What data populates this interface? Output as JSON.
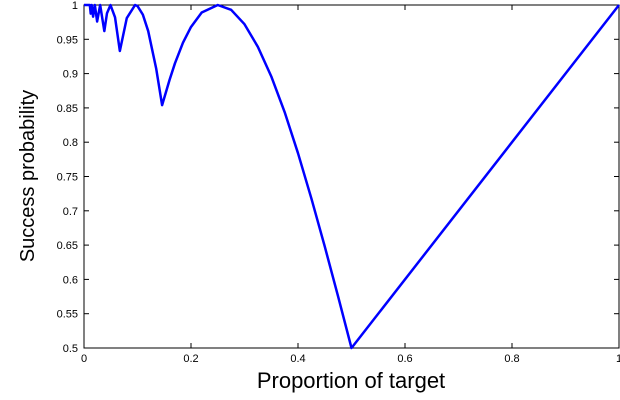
{
  "chart_data": {
    "type": "line",
    "xlabel": "Proportion of target",
    "ylabel": "Success probability",
    "xlim": [
      0,
      1
    ],
    "ylim": [
      0.5,
      1
    ],
    "xticks": [
      0,
      0.2,
      0.4,
      0.6,
      0.8,
      1
    ],
    "yticks": [
      0.5,
      0.55,
      0.6,
      0.65,
      0.7,
      0.75,
      0.8,
      0.85,
      0.9,
      0.95,
      1
    ],
    "color": "#0000ff",
    "x": [
      0,
      0.0109,
      0.01255,
      0.0145,
      0.017,
      0.0203,
      0.0245,
      0.0302,
      0.038,
      0.043,
      0.0495,
      0.058,
      0.067,
      0.08,
      0.0955,
      0.1,
      0.11,
      0.12,
      0.135,
      0.146,
      0.16,
      0.17,
      0.185,
      0.2,
      0.22,
      0.25,
      0.275,
      0.3,
      0.325,
      0.35,
      0.375,
      0.4,
      0.425,
      0.45,
      0.475,
      0.5,
      1
    ],
    "values": [
      1,
      1,
      0.9875,
      1,
      0.983,
      1,
      0.976,
      1,
      0.962,
      0.988,
      1,
      0.982,
      0.933,
      0.981,
      1,
      0.9985,
      0.986,
      0.962,
      0.907,
      0.854,
      0.891,
      0.915,
      0.945,
      0.968,
      0.989,
      1,
      0.993,
      0.972,
      0.939,
      0.896,
      0.844,
      0.784,
      0.718,
      0.648,
      0.575,
      0.5,
      1
    ]
  }
}
